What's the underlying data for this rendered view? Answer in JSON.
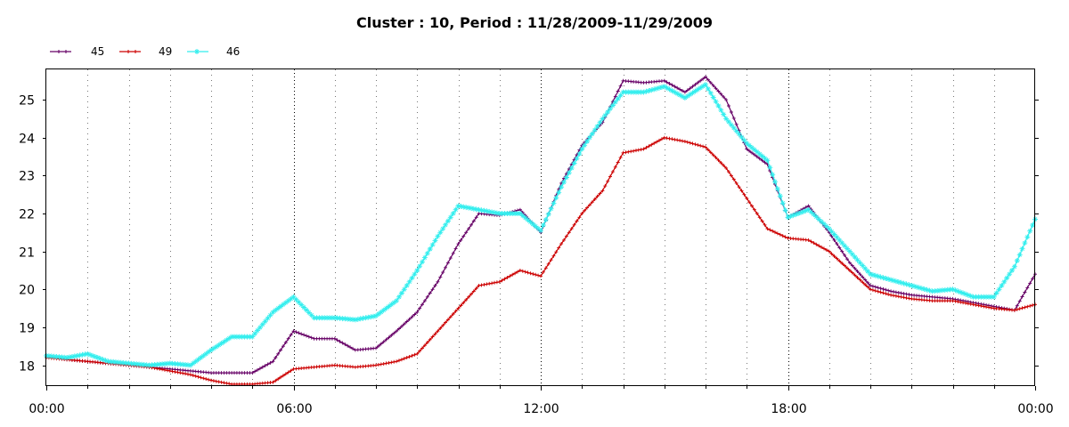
{
  "chart_data": {
    "type": "line",
    "title": "Cluster : 10, Period : 11/28/2009-11/29/2009",
    "xlabel": "",
    "ylabel": "",
    "x_unit": "hours",
    "xlim": [
      0,
      24
    ],
    "ylim": [
      17.45,
      25.8
    ],
    "x_ticks": [
      {
        "value": 0,
        "label": "00:00"
      },
      {
        "value": 6,
        "label": "06:00"
      },
      {
        "value": 12,
        "label": "12:00"
      },
      {
        "value": 18,
        "label": "18:00"
      },
      {
        "value": 24,
        "label": "00:00"
      }
    ],
    "y_ticks": [
      18,
      19,
      20,
      21,
      22,
      23,
      24,
      25
    ],
    "grid": true,
    "legend_position": "top-left",
    "x": [
      0,
      0.5,
      1,
      1.5,
      2,
      2.5,
      3,
      3.5,
      4,
      4.5,
      5,
      5.5,
      6,
      6.5,
      7,
      7.5,
      8,
      8.5,
      9,
      9.5,
      10,
      10.5,
      11,
      11.5,
      12,
      12.5,
      13,
      13.5,
      14,
      14.5,
      15,
      15.5,
      16,
      16.5,
      17,
      17.5,
      18,
      18.5,
      19,
      19.5,
      20,
      20.5,
      21,
      21.5,
      22,
      22.5,
      23,
      23.5,
      24
    ],
    "series": [
      {
        "name": "45",
        "color": "#660066",
        "marker": "plus",
        "values": [
          18.25,
          18.15,
          18.1,
          18.05,
          18.0,
          17.95,
          17.9,
          17.85,
          17.8,
          17.8,
          17.8,
          18.1,
          18.9,
          18.7,
          18.7,
          18.4,
          18.45,
          18.9,
          19.4,
          20.2,
          21.2,
          22.0,
          21.95,
          22.1,
          21.5,
          22.8,
          23.8,
          24.4,
          25.5,
          25.45,
          25.5,
          25.2,
          25.6,
          25.0,
          23.7,
          23.3,
          21.9,
          22.2,
          21.5,
          20.7,
          20.1,
          19.95,
          19.85,
          19.8,
          19.75,
          19.65,
          19.55,
          19.45,
          20.4
        ]
      },
      {
        "name": "49",
        "color": "#cc0000",
        "marker": "plus",
        "values": [
          18.2,
          18.15,
          18.1,
          18.05,
          18.0,
          17.95,
          17.85,
          17.75,
          17.6,
          17.5,
          17.5,
          17.55,
          17.9,
          17.95,
          18.0,
          17.95,
          18.0,
          18.1,
          18.3,
          18.9,
          19.5,
          20.1,
          20.2,
          20.5,
          20.35,
          21.2,
          22.0,
          22.6,
          23.6,
          23.7,
          24.0,
          23.9,
          23.75,
          23.2,
          22.4,
          21.6,
          21.35,
          21.3,
          21.0,
          20.5,
          20.0,
          19.85,
          19.75,
          19.7,
          19.7,
          19.6,
          19.5,
          19.45,
          19.6
        ]
      },
      {
        "name": "46",
        "color": "#33eeee",
        "marker": "star",
        "values": [
          18.25,
          18.2,
          18.3,
          18.1,
          18.05,
          18.0,
          18.05,
          18.0,
          18.4,
          18.75,
          18.75,
          19.4,
          19.8,
          19.25,
          19.25,
          19.2,
          19.3,
          19.7,
          20.5,
          21.4,
          22.2,
          22.1,
          22.0,
          22.0,
          21.55,
          22.7,
          23.7,
          24.5,
          25.2,
          25.2,
          25.35,
          25.05,
          25.4,
          24.5,
          23.85,
          23.4,
          21.9,
          22.1,
          21.6,
          21.0,
          20.4,
          20.25,
          20.1,
          19.95,
          20.0,
          19.8,
          19.8,
          20.6,
          21.85
        ]
      }
    ]
  }
}
